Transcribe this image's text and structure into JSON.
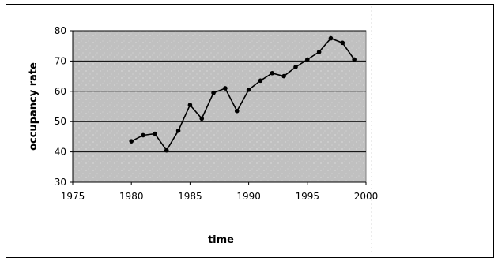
{
  "chart_data": {
    "type": "line",
    "xlabel": "time",
    "ylabel": "occupancy rate",
    "xlim": [
      1975,
      2000
    ],
    "ylim": [
      30,
      80
    ],
    "x_ticks": [
      "1975",
      "1980",
      "1985",
      "1990",
      "1995",
      "2000"
    ],
    "y_ticks": [
      "30",
      "40",
      "50",
      "60",
      "70",
      "80"
    ],
    "grid": "horizontal",
    "legend": "none",
    "series": [
      {
        "x": [
          1980,
          1981,
          1982,
          1983,
          1984,
          1985,
          1986,
          1987,
          1988,
          1989,
          1990,
          1991,
          1992,
          1993,
          1994,
          1995,
          1996,
          1997,
          1998,
          1999
        ],
        "y": [
          43.5,
          45.5,
          46,
          40.5,
          47,
          55.5,
          51,
          59.5,
          61,
          53.5,
          60.5,
          63.5,
          66,
          65,
          68,
          70.5,
          73,
          77.5,
          76,
          70.5
        ]
      }
    ],
    "colors": {
      "plot_background": "#c0c0c0",
      "line": "#000000",
      "gridline": "#000000"
    }
  }
}
